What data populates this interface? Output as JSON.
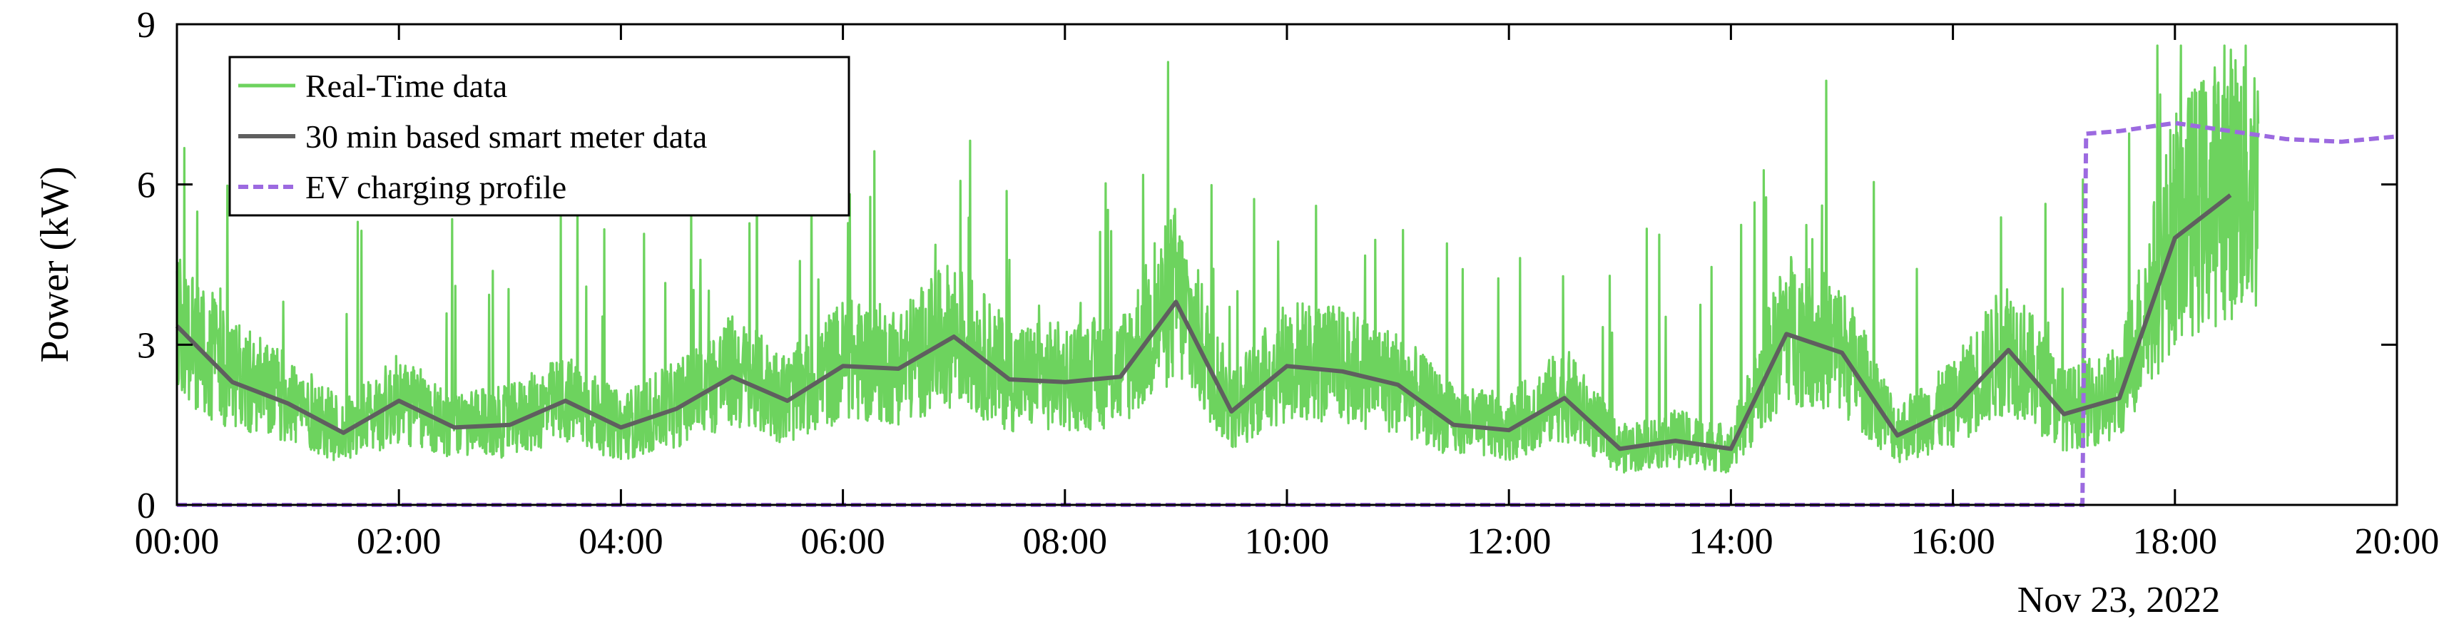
{
  "colors": {
    "realtime": "#6dd35e",
    "smart_meter": "#5f5f5f",
    "ev": "#9c6ae0",
    "axis": "#000000"
  },
  "chart_data": {
    "type": "line",
    "ylabel": "Power (kW)",
    "x_date_label": "Nov 23, 2022",
    "xlim": [
      "00:00",
      "20:00"
    ],
    "ylim": [
      0,
      9
    ],
    "x_ticks": [
      "00:00",
      "02:00",
      "04:00",
      "06:00",
      "08:00",
      "10:00",
      "12:00",
      "14:00",
      "16:00",
      "18:00",
      "20:00"
    ],
    "y_ticks": [
      0,
      3,
      6,
      9
    ],
    "legend_position": "top-left",
    "grid": false,
    "series": [
      {
        "name": "Real-Time data",
        "style": "solid",
        "x": [
          "00:00",
          "00:30",
          "01:00",
          "01:30",
          "02:00",
          "02:30",
          "03:00",
          "03:30",
          "04:00",
          "04:30",
          "05:00",
          "05:30",
          "06:00",
          "06:30",
          "07:00",
          "07:30",
          "08:00",
          "08:30",
          "09:00",
          "09:30",
          "10:00",
          "10:30",
          "11:00",
          "11:30",
          "12:00",
          "12:30",
          "13:00",
          "13:30",
          "14:00",
          "14:30",
          "15:00",
          "15:30",
          "16:00",
          "16:30",
          "17:00",
          "17:30",
          "18:00",
          "18:30",
          "18:45"
        ],
        "y": [
          3.3,
          2.3,
          1.9,
          1.3,
          1.9,
          1.4,
          1.5,
          1.9,
          1.4,
          1.8,
          2.4,
          1.9,
          2.6,
          2.5,
          3.1,
          2.3,
          2.3,
          2.4,
          3.8,
          1.7,
          2.6,
          2.5,
          2.2,
          1.5,
          1.4,
          2.0,
          1.0,
          1.2,
          1.0,
          3.2,
          2.8,
          1.3,
          1.8,
          2.9,
          1.7,
          2.0,
          5.0,
          5.8,
          5.8
        ]
      },
      {
        "name": "30 min based smart meter data",
        "style": "solid",
        "x": [
          "00:00",
          "00:30",
          "01:00",
          "01:30",
          "02:00",
          "02:30",
          "03:00",
          "03:30",
          "04:00",
          "04:30",
          "05:00",
          "05:30",
          "06:00",
          "06:30",
          "07:00",
          "07:30",
          "08:00",
          "08:30",
          "09:00",
          "09:30",
          "10:00",
          "10:30",
          "11:00",
          "11:30",
          "12:00",
          "12:30",
          "13:00",
          "13:30",
          "14:00",
          "14:30",
          "15:00",
          "15:30",
          "16:00",
          "16:30",
          "17:00",
          "17:30",
          "18:00",
          "18:30"
        ],
        "y": [
          3.35,
          2.3,
          1.9,
          1.35,
          1.95,
          1.45,
          1.5,
          1.95,
          1.45,
          1.8,
          2.4,
          1.95,
          2.6,
          2.55,
          3.15,
          2.35,
          2.3,
          2.4,
          3.8,
          1.75,
          2.6,
          2.5,
          2.25,
          1.5,
          1.4,
          2.0,
          1.05,
          1.2,
          1.05,
          3.2,
          2.85,
          1.3,
          1.8,
          2.9,
          1.7,
          2.0,
          5.0,
          5.8
        ]
      },
      {
        "name": "EV charging profile",
        "style": "dashed",
        "x": [
          "00:00",
          "17:10",
          "17:12",
          "17:30",
          "18:00",
          "18:30",
          "19:00",
          "19:30",
          "20:00"
        ],
        "y": [
          0,
          0,
          6.95,
          7.0,
          7.15,
          7.0,
          6.85,
          6.8,
          6.9
        ]
      }
    ]
  }
}
